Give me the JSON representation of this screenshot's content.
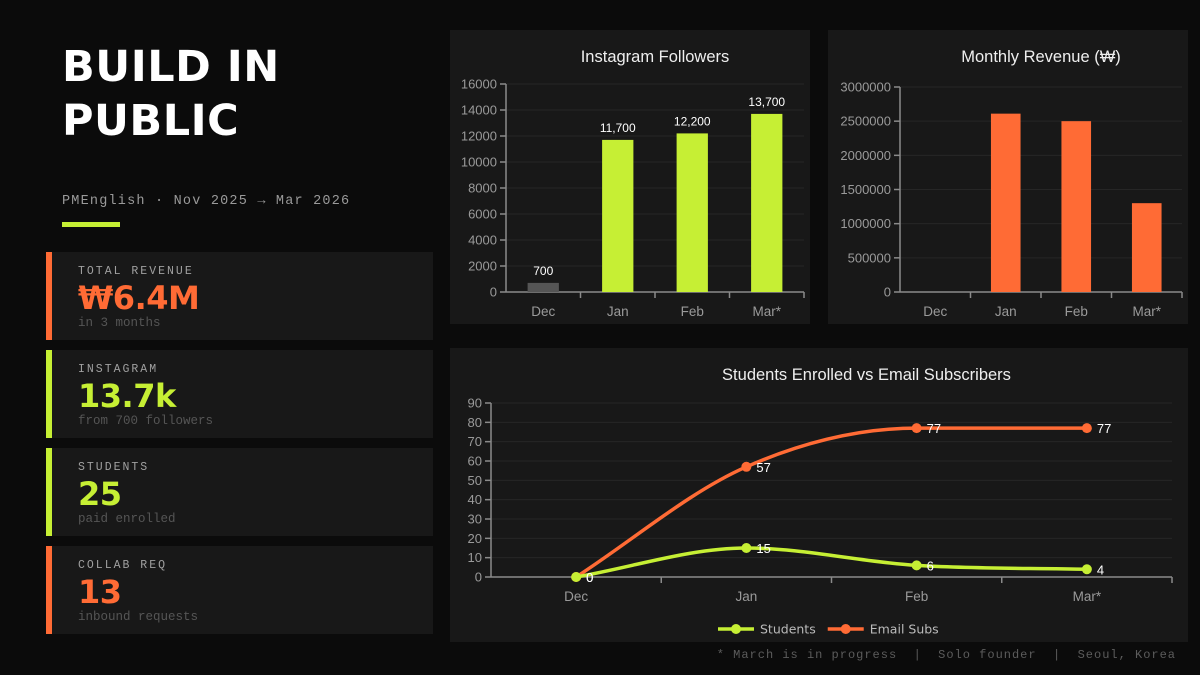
{
  "header": {
    "title_line1": "BUILD IN",
    "title_line2": "PUBLIC",
    "subtitle": "PMEnglish · Nov 2025 → Mar 2026"
  },
  "stats": [
    {
      "label": "TOTAL REVENUE",
      "value": "₩6.4M",
      "sub": "in 3 months",
      "color": "#ff6b35"
    },
    {
      "label": "INSTAGRAM",
      "value": "13.7k",
      "sub": "from 700 followers",
      "color": "#c6ef34"
    },
    {
      "label": "STUDENTS",
      "value": "25",
      "sub": "paid enrolled",
      "color": "#c6ef34"
    },
    {
      "label": "COLLAB REQ",
      "value": "13",
      "sub": "inbound requests",
      "color": "#ff6b35"
    }
  ],
  "footer": "* March is in progress  |  Solo founder  |  Seoul, Korea",
  "colors": {
    "lime": "#c6ef34",
    "orange": "#ff6b35",
    "gray_bar": "#555555"
  },
  "chart_data": [
    {
      "type": "bar",
      "title": "Instagram Followers",
      "categories": [
        "Dec",
        "Jan",
        "Feb",
        "Mar*"
      ],
      "values": [
        700,
        11700,
        12200,
        13700
      ],
      "data_labels": [
        "700",
        "11,700",
        "12,200",
        "13,700"
      ],
      "bar_colors": [
        "#555555",
        "#c6ef34",
        "#c6ef34",
        "#c6ef34"
      ],
      "ylim": [
        0,
        16000
      ],
      "yticks": [
        0,
        2000,
        4000,
        6000,
        8000,
        10000,
        12000,
        14000,
        16000
      ],
      "grid": true
    },
    {
      "type": "bar",
      "title": "Monthly Revenue (₩)",
      "categories": [
        "Dec",
        "Jan",
        "Feb",
        "Mar*"
      ],
      "values": [
        0,
        2610000,
        2500000,
        1300000
      ],
      "bar_colors": [
        "#ff6b35",
        "#ff6b35",
        "#ff6b35",
        "#ff6b35"
      ],
      "ylim": [
        0,
        3000000
      ],
      "yticks": [
        0,
        500000,
        1000000,
        1500000,
        2000000,
        2500000,
        3000000
      ],
      "grid": true
    },
    {
      "type": "line",
      "title": "Students Enrolled vs Email Subscribers",
      "categories": [
        "Dec",
        "Jan",
        "Feb",
        "Mar*"
      ],
      "series": [
        {
          "name": "Students",
          "values": [
            0,
            15,
            6,
            4
          ],
          "color": "#c6ef34"
        },
        {
          "name": "Email Subs",
          "values": [
            0,
            57,
            77,
            77
          ],
          "color": "#ff6b35"
        }
      ],
      "ylim": [
        0,
        90
      ],
      "yticks": [
        0,
        10,
        20,
        30,
        40,
        50,
        60,
        70,
        80,
        90
      ],
      "legend": "bottom",
      "grid": true
    }
  ]
}
